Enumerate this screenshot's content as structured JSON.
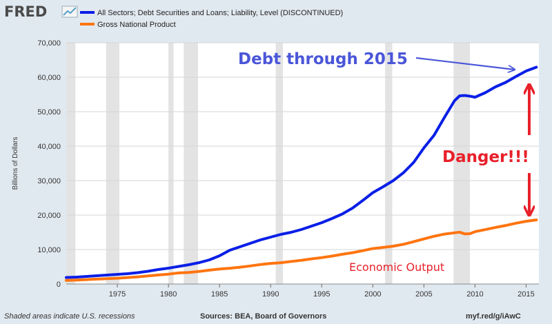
{
  "header": {
    "logo_text": "FRED",
    "legend": [
      {
        "label": "All Sectors; Debt Securities and Loans; Liability, Level (DISCONTINUED)",
        "color": "#0a1fe6"
      },
      {
        "label": "Gross National Product",
        "color": "#ff7410"
      }
    ]
  },
  "footer": {
    "recession_note": "Shaded areas indicate U.S. recessions",
    "sources": "Sources: BEA, Board of Governors",
    "link": "myf.red/g/iAwC"
  },
  "annotations": {
    "debt_label": "Debt through 2015",
    "danger_label": "Danger!!!",
    "output_label": "Economic Output"
  },
  "colors": {
    "debt": "#0a1fe6",
    "gnp": "#ff7410",
    "debt_annotation": "#4a56d8",
    "danger": "#e8202a",
    "recession": "#e3e3e3"
  },
  "chart_data": {
    "type": "line",
    "ylabel": "Billions of Dollars",
    "xlim": [
      1970,
      2016.25
    ],
    "ylim": [
      0,
      70000
    ],
    "yticks": [
      0,
      10000,
      20000,
      30000,
      40000,
      50000,
      60000,
      70000
    ],
    "ytick_labels": [
      "0",
      "10,000",
      "20,000",
      "30,000",
      "40,000",
      "50,000",
      "60,000",
      "70,000"
    ],
    "xticks": [
      1975,
      1980,
      1985,
      1990,
      1995,
      2000,
      2005,
      2010,
      2015
    ],
    "xtick_labels": [
      "1975",
      "1980",
      "1985",
      "1990",
      "1995",
      "2000",
      "2005",
      "2010",
      "2015"
    ],
    "grid": true,
    "recessions": [
      [
        1970,
        1970.9
      ],
      [
        1973.9,
        1975.2
      ],
      [
        1980,
        1980.5
      ],
      [
        1981.5,
        1982.9
      ],
      [
        1990.5,
        1991.2
      ],
      [
        2001.2,
        2001.9
      ],
      [
        2007.9,
        2009.5
      ]
    ],
    "series": [
      {
        "name": "All Sectors; Debt Securities and Loans; Liability, Level (DISCONTINUED)",
        "x": [
          1970,
          1971,
          1972,
          1973,
          1974,
          1975,
          1976,
          1977,
          1978,
          1979,
          1980,
          1981,
          1982,
          1983,
          1984,
          1985,
          1986,
          1987,
          1988,
          1989,
          1990,
          1991,
          1992,
          1993,
          1994,
          1995,
          1996,
          1997,
          1998,
          1999,
          2000,
          2001,
          2002,
          2003,
          2004,
          2005,
          2006,
          2007,
          2008,
          2008.5,
          2009,
          2009.5,
          2010,
          2011,
          2012,
          2013,
          2014,
          2015,
          2016
        ],
        "values": [
          1900,
          2000,
          2200,
          2400,
          2600,
          2800,
          3000,
          3300,
          3700,
          4200,
          4600,
          5100,
          5600,
          6200,
          7000,
          8200,
          9800,
          10800,
          11800,
          12800,
          13600,
          14400,
          15000,
          15800,
          16800,
          17800,
          19000,
          20300,
          22000,
          24200,
          26500,
          28200,
          30000,
          32300,
          35300,
          39500,
          43200,
          48300,
          53200,
          54600,
          54700,
          54500,
          54200,
          55500,
          57200,
          58500,
          60200,
          61800,
          62900
        ]
      },
      {
        "name": "Gross National Product",
        "x": [
          1970,
          1971,
          1972,
          1973,
          1974,
          1975,
          1976,
          1977,
          1978,
          1979,
          1980,
          1981,
          1982,
          1983,
          1984,
          1985,
          1986,
          1987,
          1988,
          1989,
          1990,
          1991,
          1992,
          1993,
          1994,
          1995,
          1996,
          1997,
          1998,
          1999,
          2000,
          2001,
          2002,
          2003,
          2004,
          2005,
          2006,
          2007,
          2008,
          2008.5,
          2009,
          2009.5,
          2010,
          2011,
          2012,
          2013,
          2014,
          2015,
          2016
        ],
        "values": [
          1050,
          1150,
          1270,
          1420,
          1550,
          1690,
          1870,
          2080,
          2350,
          2630,
          2860,
          3210,
          3340,
          3640,
          4030,
          4340,
          4590,
          4870,
          5250,
          5660,
          5980,
          6170,
          6540,
          6880,
          7300,
          7660,
          8100,
          8610,
          9090,
          9660,
          10280,
          10620,
          10980,
          11510,
          12270,
          13090,
          13860,
          14480,
          14860,
          15050,
          14550,
          14600,
          15170,
          15790,
          16430,
          16980,
          17650,
          18200,
          18600
        ]
      }
    ]
  }
}
